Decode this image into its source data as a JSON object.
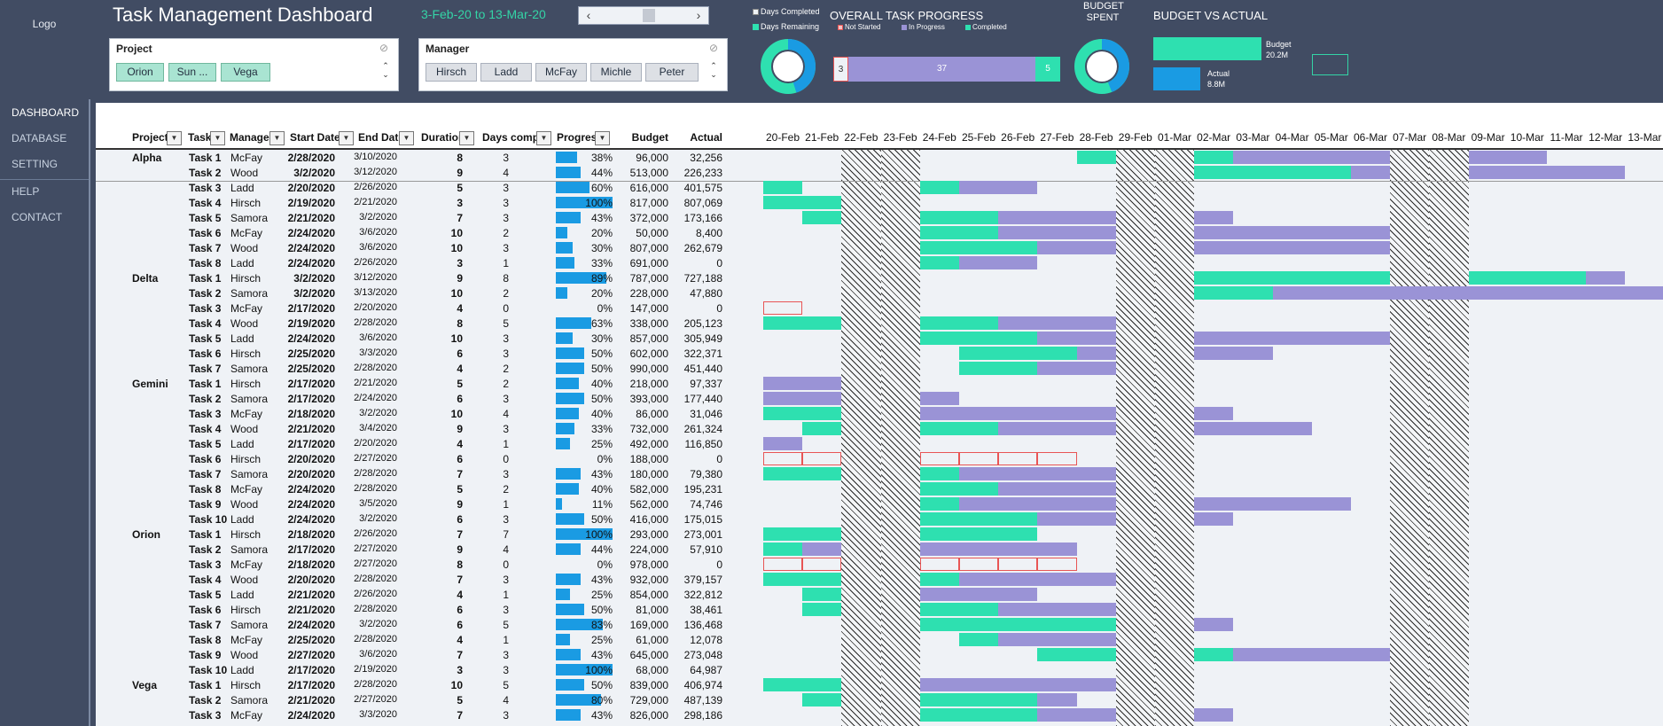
{
  "sidebar": {
    "logo": "Logo",
    "items": [
      "DASHBOARD",
      "DATABASE",
      "SETTING",
      "HELP",
      "CONTACT"
    ]
  },
  "header": {
    "title": "Task Management Dashboard",
    "date_range": "3-Feb-20 to 13-Mar-20"
  },
  "slicers": {
    "project": {
      "title": "Project",
      "items": [
        "Orion",
        "Sun ...",
        "Vega"
      ],
      "selected": [
        true,
        true,
        true
      ]
    },
    "manager": {
      "title": "Manager",
      "items": [
        "Hirsch",
        "Ladd",
        "McFay",
        "Michle",
        "Peter"
      ],
      "selected": [
        false,
        false,
        false,
        false,
        false
      ]
    }
  },
  "task_progress": {
    "title": "OVERALL TASK PROGRESS",
    "donut_legend": [
      "Days Completed",
      "Days Remaining"
    ],
    "status_legend": [
      "Not Started",
      "In Progress",
      "Completed"
    ],
    "not_started": "3",
    "in_progress": "37",
    "completed": "5",
    "days_completed_fraction": 0.45
  },
  "budget_spent": {
    "title_line1": "BUDGET",
    "title_line2": "SPENT",
    "spent_fraction": 0.44
  },
  "budget_vs_actual": {
    "title": "BUDGET VS ACTUAL",
    "budget_label": "Budget",
    "budget_value": "20.2M",
    "actual_label": "Actual",
    "actual_value": "8.8M",
    "budget": 20.2,
    "actual": 8.8
  },
  "colors": {
    "completed": "#2ee0b0",
    "in_progress": "#9a93d6",
    "progress_fill": "#1a9be3",
    "accent": "#34d4a6"
  },
  "table": {
    "columns": [
      "Project",
      "Task",
      "Manager",
      "Start Date",
      "End Date",
      "Duration",
      "Days completed",
      "Progress",
      "Budget",
      "Actual"
    ],
    "dates": [
      "20-Feb",
      "21-Feb",
      "22-Feb",
      "23-Feb",
      "24-Feb",
      "25-Feb",
      "26-Feb",
      "27-Feb",
      "28-Feb",
      "29-Feb",
      "01-Mar",
      "02-Mar",
      "03-Mar",
      "04-Mar",
      "05-Mar",
      "06-Mar",
      "07-Mar",
      "08-Mar",
      "09-Mar",
      "10-Mar",
      "11-Mar",
      "12-Mar",
      "13-Mar"
    ],
    "weekends": [
      2,
      3,
      9,
      10,
      16,
      17
    ],
    "rows": [
      [
        "Alpha",
        "Task 1",
        "McFay",
        "2/28/2020",
        "3/10/2020",
        "8",
        "3",
        "38%",
        "96,000",
        "32,256"
      ],
      [
        "",
        "Task 2",
        "Wood",
        "3/2/2020",
        "3/12/2020",
        "9",
        "4",
        "44%",
        "513,000",
        "226,233"
      ],
      [
        "",
        "Task 3",
        "Ladd",
        "2/20/2020",
        "2/26/2020",
        "5",
        "3",
        "60%",
        "616,000",
        "401,575"
      ],
      [
        "",
        "Task 4",
        "Hirsch",
        "2/19/2020",
        "2/21/2020",
        "3",
        "3",
        "100%",
        "817,000",
        "807,069"
      ],
      [
        "",
        "Task 5",
        "Samora",
        "2/21/2020",
        "3/2/2020",
        "7",
        "3",
        "43%",
        "372,000",
        "173,166"
      ],
      [
        "",
        "Task 6",
        "McFay",
        "2/24/2020",
        "3/6/2020",
        "10",
        "2",
        "20%",
        "50,000",
        "8,400"
      ],
      [
        "",
        "Task 7",
        "Wood",
        "2/24/2020",
        "3/6/2020",
        "10",
        "3",
        "30%",
        "807,000",
        "262,679"
      ],
      [
        "",
        "Task 8",
        "Ladd",
        "2/24/2020",
        "2/26/2020",
        "3",
        "1",
        "33%",
        "691,000",
        "0"
      ],
      [
        "Delta",
        "Task 1",
        "Hirsch",
        "3/2/2020",
        "3/12/2020",
        "9",
        "8",
        "89%",
        "787,000",
        "727,188"
      ],
      [
        "",
        "Task 2",
        "Samora",
        "3/2/2020",
        "3/13/2020",
        "10",
        "2",
        "20%",
        "228,000",
        "47,880"
      ],
      [
        "",
        "Task 3",
        "McFay",
        "2/17/2020",
        "2/20/2020",
        "4",
        "0",
        "0%",
        "147,000",
        "0"
      ],
      [
        "",
        "Task 4",
        "Wood",
        "2/19/2020",
        "2/28/2020",
        "8",
        "5",
        "63%",
        "338,000",
        "205,123"
      ],
      [
        "",
        "Task 5",
        "Ladd",
        "2/24/2020",
        "3/6/2020",
        "10",
        "3",
        "30%",
        "857,000",
        "305,949"
      ],
      [
        "",
        "Task 6",
        "Hirsch",
        "2/25/2020",
        "3/3/2020",
        "6",
        "3",
        "50%",
        "602,000",
        "322,371"
      ],
      [
        "",
        "Task 7",
        "Samora",
        "2/25/2020",
        "2/28/2020",
        "4",
        "2",
        "50%",
        "990,000",
        "451,440"
      ],
      [
        "Gemini",
        "Task 1",
        "Hirsch",
        "2/17/2020",
        "2/21/2020",
        "5",
        "2",
        "40%",
        "218,000",
        "97,337"
      ],
      [
        "",
        "Task 2",
        "Samora",
        "2/17/2020",
        "2/24/2020",
        "6",
        "3",
        "50%",
        "393,000",
        "177,440"
      ],
      [
        "",
        "Task 3",
        "McFay",
        "2/18/2020",
        "3/2/2020",
        "10",
        "4",
        "40%",
        "86,000",
        "31,046"
      ],
      [
        "",
        "Task 4",
        "Wood",
        "2/21/2020",
        "3/4/2020",
        "9",
        "3",
        "33%",
        "732,000",
        "261,324"
      ],
      [
        "",
        "Task 5",
        "Ladd",
        "2/17/2020",
        "2/20/2020",
        "4",
        "1",
        "25%",
        "492,000",
        "116,850"
      ],
      [
        "",
        "Task 6",
        "Hirsch",
        "2/20/2020",
        "2/27/2020",
        "6",
        "0",
        "0%",
        "188,000",
        "0"
      ],
      [
        "",
        "Task 7",
        "Samora",
        "2/20/2020",
        "2/28/2020",
        "7",
        "3",
        "43%",
        "180,000",
        "79,380"
      ],
      [
        "",
        "Task 8",
        "McFay",
        "2/24/2020",
        "2/28/2020",
        "5",
        "2",
        "40%",
        "582,000",
        "195,231"
      ],
      [
        "",
        "Task 9",
        "Wood",
        "2/24/2020",
        "3/5/2020",
        "9",
        "1",
        "11%",
        "562,000",
        "74,746"
      ],
      [
        "",
        "Task 10",
        "Ladd",
        "2/24/2020",
        "3/2/2020",
        "6",
        "3",
        "50%",
        "416,000",
        "175,015"
      ],
      [
        "Orion",
        "Task 1",
        "Hirsch",
        "2/18/2020",
        "2/26/2020",
        "7",
        "7",
        "100%",
        "293,000",
        "273,001"
      ],
      [
        "",
        "Task 2",
        "Samora",
        "2/17/2020",
        "2/27/2020",
        "9",
        "4",
        "44%",
        "224,000",
        "57,910"
      ],
      [
        "",
        "Task 3",
        "McFay",
        "2/18/2020",
        "2/27/2020",
        "8",
        "0",
        "0%",
        "978,000",
        "0"
      ],
      [
        "",
        "Task 4",
        "Wood",
        "2/20/2020",
        "2/28/2020",
        "7",
        "3",
        "43%",
        "932,000",
        "379,157"
      ],
      [
        "",
        "Task 5",
        "Ladd",
        "2/21/2020",
        "2/26/2020",
        "4",
        "1",
        "25%",
        "854,000",
        "322,812"
      ],
      [
        "",
        "Task 6",
        "Hirsch",
        "2/21/2020",
        "2/28/2020",
        "6",
        "3",
        "50%",
        "81,000",
        "38,461"
      ],
      [
        "",
        "Task 7",
        "Samora",
        "2/24/2020",
        "3/2/2020",
        "6",
        "5",
        "83%",
        "169,000",
        "136,468"
      ],
      [
        "",
        "Task 8",
        "McFay",
        "2/25/2020",
        "2/28/2020",
        "4",
        "1",
        "25%",
        "61,000",
        "12,078"
      ],
      [
        "",
        "Task 9",
        "Wood",
        "2/27/2020",
        "3/6/2020",
        "7",
        "3",
        "43%",
        "645,000",
        "273,048"
      ],
      [
        "",
        "Task 10",
        "Ladd",
        "2/17/2020",
        "2/19/2020",
        "3",
        "3",
        "100%",
        "68,000",
        "64,987"
      ],
      [
        "Vega",
        "Task 1",
        "Hirsch",
        "2/17/2020",
        "2/28/2020",
        "10",
        "5",
        "50%",
        "839,000",
        "406,974"
      ],
      [
        "",
        "Task 2",
        "Samora",
        "2/21/2020",
        "2/27/2020",
        "5",
        "4",
        "80%",
        "729,000",
        "487,139"
      ],
      [
        "",
        "Task 3",
        "McFay",
        "2/24/2020",
        "3/3/2020",
        "7",
        "3",
        "43%",
        "826,000",
        "298,186"
      ]
    ],
    "gantt": [
      [
        [
          8,
          1,
          "c"
        ],
        [
          11,
          2,
          "c"
        ],
        [
          12,
          4,
          "p"
        ],
        [
          18,
          2,
          "p"
        ]
      ],
      [
        [
          11,
          4,
          "c"
        ],
        [
          15,
          1,
          "p"
        ],
        [
          18,
          4,
          "p"
        ]
      ],
      [
        [
          0,
          1,
          "c"
        ],
        [
          4,
          1,
          "c"
        ],
        [
          5,
          2,
          "p"
        ]
      ],
      [
        [
          0,
          2,
          "c"
        ]
      ],
      [
        [
          1,
          1,
          "c"
        ],
        [
          4,
          2,
          "c"
        ],
        [
          6,
          3,
          "p"
        ],
        [
          11,
          1,
          "p"
        ]
      ],
      [
        [
          4,
          2,
          "c"
        ],
        [
          6,
          3,
          "p"
        ],
        [
          11,
          5,
          "p"
        ]
      ],
      [
        [
          4,
          3,
          "c"
        ],
        [
          7,
          2,
          "p"
        ],
        [
          11,
          5,
          "p"
        ]
      ],
      [
        [
          4,
          1,
          "c"
        ],
        [
          5,
          2,
          "p"
        ]
      ],
      [
        [
          11,
          5,
          "c"
        ],
        [
          18,
          3,
          "c"
        ],
        [
          21,
          1,
          "p"
        ]
      ],
      [
        [
          11,
          2,
          "c"
        ],
        [
          13,
          10,
          "p"
        ]
      ],
      [
        [
          0,
          1,
          "z"
        ]
      ],
      [
        [
          0,
          2,
          "c"
        ],
        [
          4,
          2,
          "c"
        ],
        [
          6,
          3,
          "p"
        ]
      ],
      [
        [
          4,
          3,
          "c"
        ],
        [
          7,
          2,
          "p"
        ],
        [
          11,
          5,
          "p"
        ]
      ],
      [
        [
          5,
          3,
          "c"
        ],
        [
          8,
          1,
          "p"
        ],
        [
          11,
          2,
          "p"
        ]
      ],
      [
        [
          5,
          2,
          "c"
        ],
        [
          7,
          2,
          "p"
        ]
      ],
      [
        [
          0,
          2,
          "p"
        ]
      ],
      [
        [
          0,
          2,
          "p"
        ],
        [
          4,
          1,
          "p"
        ]
      ],
      [
        [
          0,
          2,
          "c"
        ],
        [
          4,
          5,
          "p"
        ],
        [
          11,
          1,
          "p"
        ]
      ],
      [
        [
          1,
          1,
          "c"
        ],
        [
          4,
          2,
          "c"
        ],
        [
          6,
          3,
          "p"
        ],
        [
          11,
          3,
          "p"
        ]
      ],
      [
        [
          0,
          1,
          "p"
        ]
      ],
      [
        [
          0,
          2,
          "z"
        ],
        [
          4,
          4,
          "z"
        ]
      ],
      [
        [
          0,
          2,
          "c"
        ],
        [
          4,
          1,
          "c"
        ],
        [
          5,
          4,
          "p"
        ]
      ],
      [
        [
          4,
          2,
          "c"
        ],
        [
          6,
          3,
          "p"
        ]
      ],
      [
        [
          4,
          1,
          "c"
        ],
        [
          5,
          4,
          "p"
        ],
        [
          11,
          4,
          "p"
        ]
      ],
      [
        [
          4,
          3,
          "c"
        ],
        [
          7,
          2,
          "p"
        ],
        [
          11,
          1,
          "p"
        ]
      ],
      [
        [
          0,
          2,
          "c"
        ],
        [
          4,
          3,
          "c"
        ]
      ],
      [
        [
          0,
          1,
          "c"
        ],
        [
          1,
          1,
          "p"
        ],
        [
          4,
          4,
          "p"
        ]
      ],
      [
        [
          0,
          2,
          "z"
        ],
        [
          4,
          4,
          "z"
        ]
      ],
      [
        [
          0,
          2,
          "c"
        ],
        [
          4,
          1,
          "c"
        ],
        [
          5,
          4,
          "p"
        ]
      ],
      [
        [
          1,
          1,
          "c"
        ],
        [
          4,
          3,
          "p"
        ]
      ],
      [
        [
          1,
          1,
          "c"
        ],
        [
          4,
          2,
          "c"
        ],
        [
          6,
          3,
          "p"
        ]
      ],
      [
        [
          4,
          5,
          "c"
        ],
        [
          11,
          1,
          "p"
        ]
      ],
      [
        [
          5,
          1,
          "c"
        ],
        [
          6,
          3,
          "p"
        ]
      ],
      [
        [
          7,
          2,
          "c"
        ],
        [
          11,
          1,
          "c"
        ],
        [
          12,
          4,
          "p"
        ]
      ],
      [],
      [
        [
          0,
          2,
          "c"
        ],
        [
          4,
          5,
          "p"
        ]
      ],
      [
        [
          1,
          1,
          "c"
        ],
        [
          4,
          3,
          "c"
        ],
        [
          7,
          1,
          "p"
        ]
      ],
      [
        [
          4,
          3,
          "c"
        ],
        [
          7,
          2,
          "p"
        ],
        [
          11,
          1,
          "p"
        ]
      ]
    ]
  }
}
